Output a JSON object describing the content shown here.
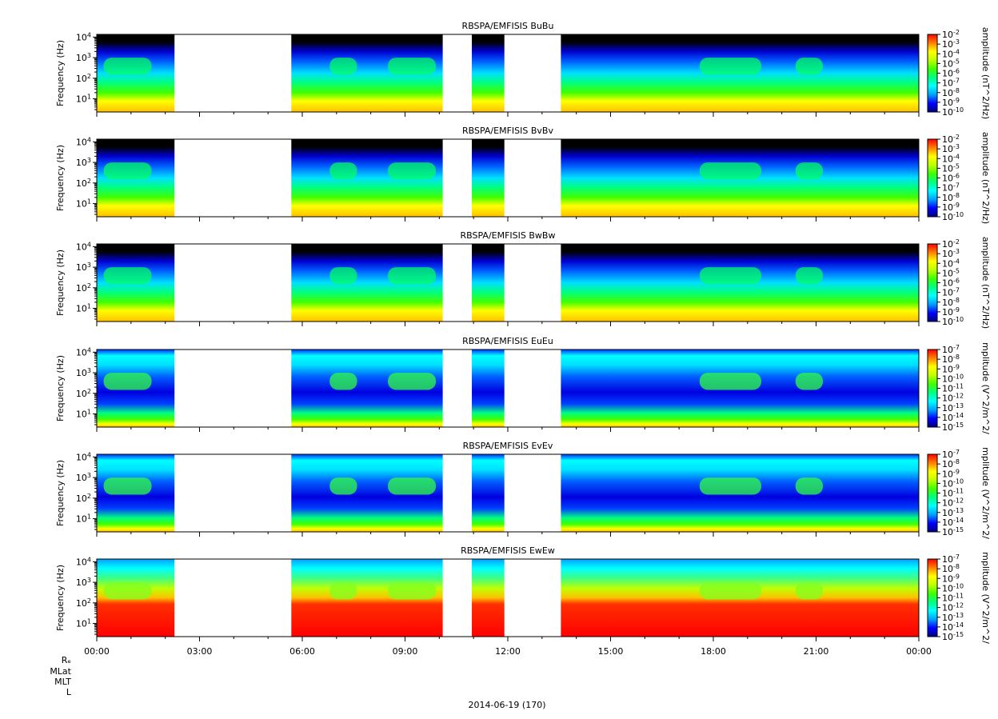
{
  "chart_data": {
    "type": "heatmap",
    "mission": "RBSPA/EMFISIS",
    "date_label": "2014-06-19 (170)",
    "x_ticks": [
      "00:00",
      "03:00",
      "06:00",
      "09:00",
      "12:00",
      "15:00",
      "18:00",
      "21:00",
      "00:00"
    ],
    "x_range_hours": [
      0,
      24
    ],
    "data_gaps_hours": [
      [
        2.27,
        5.68
      ],
      [
        10.1,
        10.95
      ],
      [
        11.9,
        13.55
      ]
    ],
    "ephemeris_labels": [
      "Rₑ",
      "MLat",
      "MLT",
      "L"
    ],
    "colormap": [
      "#000080",
      "#0000ff",
      "#00a0ff",
      "#00ffff",
      "#00ff80",
      "#40ff00",
      "#c0ff00",
      "#ffff00",
      "#ff8000",
      "#ff0000"
    ],
    "panels": [
      {
        "title": "RBSPA/EMFISIS  BuBu",
        "ylabel": "Frequency (Hz)",
        "y_scale": "log",
        "y_ticks": [
          "10^1",
          "10^2",
          "10^3",
          "10^4"
        ],
        "colorbar_label": "amplitude (nT^2/Hz)",
        "colorbar_ticks": [
          "10^-2",
          "10^-3",
          "10^-4",
          "10^-5",
          "10^-6",
          "10^-7",
          "10^-8",
          "10^-9",
          "10^-10"
        ]
      },
      {
        "title": "RBSPA/EMFISIS  BvBv",
        "ylabel": "Frequency (Hz)",
        "y_scale": "log",
        "y_ticks": [
          "10^1",
          "10^2",
          "10^3",
          "10^4"
        ],
        "colorbar_label": "amplitude (nT^2/Hz)",
        "colorbar_ticks": [
          "10^-2",
          "10^-3",
          "10^-4",
          "10^-5",
          "10^-6",
          "10^-7",
          "10^-8",
          "10^-9",
          "10^-10"
        ]
      },
      {
        "title": "RBSPA/EMFISIS  BwBw",
        "ylabel": "Frequency (Hz)",
        "y_scale": "log",
        "y_ticks": [
          "10^1",
          "10^2",
          "10^3",
          "10^4"
        ],
        "colorbar_label": "amplitude (nT^2/Hz)",
        "colorbar_ticks": [
          "10^-2",
          "10^-3",
          "10^-4",
          "10^-5",
          "10^-6",
          "10^-7",
          "10^-8",
          "10^-9",
          "10^-10"
        ]
      },
      {
        "title": "RBSPA/EMFISIS  EuEu",
        "ylabel": "Frequency (Hz)",
        "y_scale": "log",
        "y_ticks": [
          "10^1",
          "10^2",
          "10^3",
          "10^4"
        ],
        "colorbar_label": "mplitude (V^2/m^2/",
        "colorbar_ticks": [
          "10^-7",
          "10^-8",
          "10^-9",
          "10^-10",
          "10^-11",
          "10^-12",
          "10^-13",
          "10^-14",
          "10^-15"
        ]
      },
      {
        "title": "RBSPA/EMFISIS  EvEv",
        "ylabel": "Frequency (Hz)",
        "y_scale": "log",
        "y_ticks": [
          "10^1",
          "10^2",
          "10^3",
          "10^4"
        ],
        "colorbar_label": "mplitude (V^2/m^2/",
        "colorbar_ticks": [
          "10^-7",
          "10^-8",
          "10^-9",
          "10^-10",
          "10^-11",
          "10^-12",
          "10^-13",
          "10^-14",
          "10^-15"
        ]
      },
      {
        "title": "RBSPA/EMFISIS  EwEw",
        "ylabel": "Frequency (Hz)",
        "y_scale": "log",
        "y_ticks": [
          "10^1",
          "10^2",
          "10^3",
          "10^4"
        ],
        "colorbar_label": "mplitude (V^2/m^2/",
        "colorbar_ticks": [
          "10^-7",
          "10^-8",
          "10^-9",
          "10^-10",
          "10^-11",
          "10^-12",
          "10^-13",
          "10^-14",
          "10^-15"
        ]
      }
    ]
  }
}
